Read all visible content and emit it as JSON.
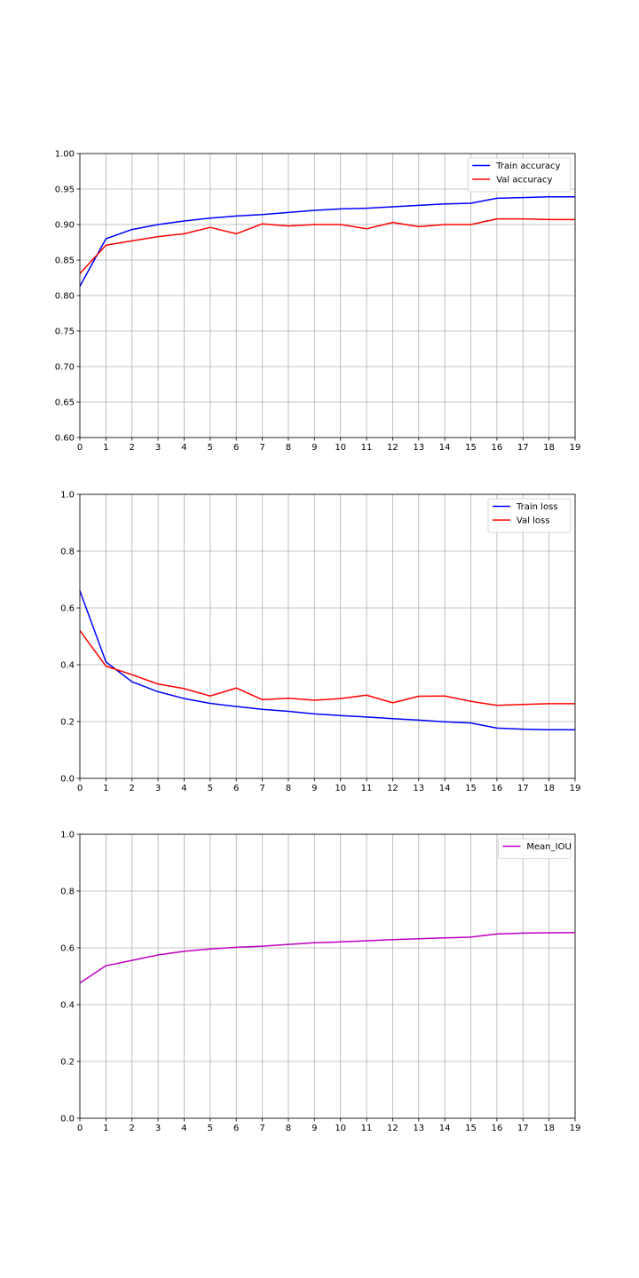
{
  "chart_data": [
    {
      "type": "line",
      "title": "",
      "xlabel": "",
      "ylabel": "",
      "xlim": [
        0,
        19
      ],
      "ylim": [
        0.6,
        1.0
      ],
      "x_ticks": [
        0,
        1,
        2,
        3,
        4,
        5,
        6,
        7,
        8,
        9,
        10,
        11,
        12,
        13,
        14,
        15,
        16,
        17,
        18,
        19
      ],
      "y_ticks": [
        0.6,
        0.65,
        0.7,
        0.75,
        0.8,
        0.85,
        0.9,
        0.95,
        1.0
      ],
      "y_tick_decimals": 2,
      "grid": true,
      "legend_position": "top-right",
      "x": [
        0,
        1,
        2,
        3,
        4,
        5,
        6,
        7,
        8,
        9,
        10,
        11,
        12,
        13,
        14,
        15,
        16,
        17,
        18,
        19
      ],
      "series": [
        {
          "name": "Train accuracy",
          "color": "#0000ff",
          "values": [
            0.813,
            0.88,
            0.893,
            0.9,
            0.905,
            0.909,
            0.912,
            0.914,
            0.917,
            0.92,
            0.922,
            0.923,
            0.925,
            0.927,
            0.929,
            0.93,
            0.937,
            0.938,
            0.939,
            0.939
          ]
        },
        {
          "name": "Val accuracy",
          "color": "#ff0000",
          "values": [
            0.831,
            0.871,
            0.877,
            0.883,
            0.887,
            0.896,
            0.887,
            0.901,
            0.898,
            0.9,
            0.9,
            0.894,
            0.903,
            0.897,
            0.9,
            0.9,
            0.908,
            0.908,
            0.907,
            0.907
          ]
        }
      ]
    },
    {
      "type": "line",
      "title": "",
      "xlabel": "",
      "ylabel": "",
      "xlim": [
        0,
        19
      ],
      "ylim": [
        0.0,
        1.0
      ],
      "x_ticks": [
        0,
        1,
        2,
        3,
        4,
        5,
        6,
        7,
        8,
        9,
        10,
        11,
        12,
        13,
        14,
        15,
        16,
        17,
        18,
        19
      ],
      "y_ticks": [
        0.0,
        0.2,
        0.4,
        0.6,
        0.8,
        1.0
      ],
      "y_tick_decimals": 1,
      "grid": true,
      "legend_position": "top-right",
      "x": [
        0,
        1,
        2,
        3,
        4,
        5,
        6,
        7,
        8,
        9,
        10,
        11,
        12,
        13,
        14,
        15,
        16,
        17,
        18,
        19
      ],
      "series": [
        {
          "name": "Train loss",
          "color": "#0000ff",
          "values": [
            0.66,
            0.41,
            0.34,
            0.305,
            0.281,
            0.264,
            0.253,
            0.243,
            0.236,
            0.227,
            0.221,
            0.216,
            0.21,
            0.205,
            0.199,
            0.195,
            0.177,
            0.173,
            0.171,
            0.171
          ]
        },
        {
          "name": "Val loss",
          "color": "#ff0000",
          "values": [
            0.52,
            0.395,
            0.365,
            0.332,
            0.316,
            0.29,
            0.318,
            0.277,
            0.282,
            0.275,
            0.281,
            0.293,
            0.266,
            0.289,
            0.29,
            0.271,
            0.257,
            0.26,
            0.263,
            0.263
          ]
        }
      ]
    },
    {
      "type": "line",
      "title": "",
      "xlabel": "",
      "ylabel": "",
      "xlim": [
        0,
        19
      ],
      "ylim": [
        0.0,
        1.0
      ],
      "x_ticks": [
        0,
        1,
        2,
        3,
        4,
        5,
        6,
        7,
        8,
        9,
        10,
        11,
        12,
        13,
        14,
        15,
        16,
        17,
        18,
        19
      ],
      "y_ticks": [
        0.0,
        0.2,
        0.4,
        0.6,
        0.8,
        1.0
      ],
      "y_tick_decimals": 1,
      "grid": true,
      "legend_position": "top-right",
      "x": [
        0,
        1,
        2,
        3,
        4,
        5,
        6,
        7,
        8,
        9,
        10,
        11,
        12,
        13,
        14,
        15,
        16,
        17,
        18,
        19
      ],
      "series": [
        {
          "name": "Mean_IOU",
          "color": "#bf00bf",
          "values": [
            0.476,
            0.537,
            0.556,
            0.575,
            0.588,
            0.596,
            0.602,
            0.606,
            0.612,
            0.618,
            0.621,
            0.625,
            0.629,
            0.632,
            0.635,
            0.638,
            0.649,
            0.652,
            0.653,
            0.654
          ]
        }
      ]
    }
  ]
}
